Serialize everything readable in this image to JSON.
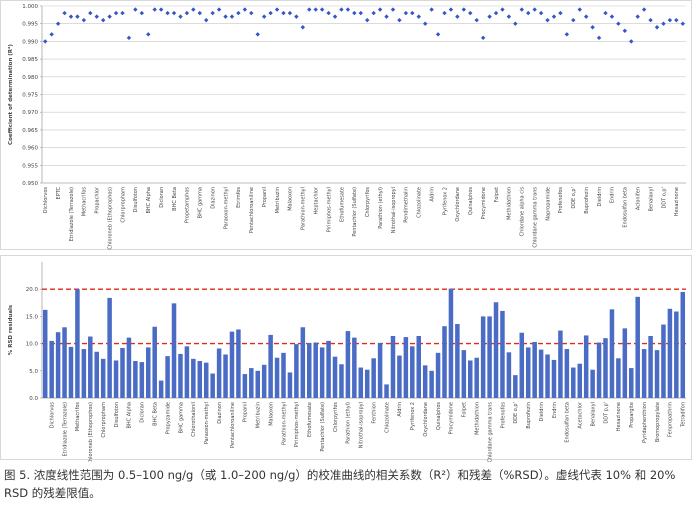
{
  "chart_data": [
    {
      "type": "scatter",
      "y_label": "Coefficient of determination (R²)",
      "color": "#3556c8",
      "marker": "diamond",
      "grid": true,
      "ylim": [
        0.95,
        1.0
      ],
      "yticks": [
        {
          "value": 0.95,
          "label": "0.950"
        },
        0.955,
        {
          "value": 0.96,
          "label": "0.960"
        },
        0.965,
        {
          "value": 0.97,
          "label": "0.970"
        },
        0.975,
        {
          "value": 0.98,
          "label": "0.980"
        },
        0.985,
        {
          "value": 0.99,
          "label": "0.990"
        },
        0.995,
        {
          "value": 1.0,
          "label": "1.000"
        }
      ],
      "categories": [
        "Dichlorvos",
        null,
        "EPTC",
        null,
        "Etridiazole (Terrazole)",
        null,
        "Methacrifos",
        null,
        "Propachlor",
        null,
        "Chloroneb (Ethoprophos)",
        null,
        "Chlorpropham",
        null,
        "Disulfoton",
        null,
        "BHC Alpha",
        null,
        "Dicloran",
        null,
        "BHC Beta",
        null,
        "Propetamphos",
        null,
        "BHC gamma",
        null,
        "Diazinon",
        null,
        "Paraoxon-methyl",
        null,
        "Etrimfos",
        null,
        "Pentachloroaniline",
        null,
        "Propanil",
        null,
        "Metribuzin",
        null,
        "Malaoxon",
        null,
        "Parathion-methyl",
        null,
        "Heptachlor",
        null,
        "Pirimiphos-methyl",
        null,
        "Ethofumesate",
        null,
        "Pentachlor (Sulfate)",
        null,
        "Chlorpyrifos",
        null,
        "Parathion (ethyl)",
        null,
        "Nitrothal-isopropyl",
        null,
        "Pendimethalin",
        null,
        "Chlozolinate",
        null,
        "Aldrin",
        null,
        "Pyrifenox 2",
        null,
        "Oxychlordane",
        null,
        "Quinalphos",
        null,
        "Procymidone",
        null,
        "Folpet",
        null,
        "Methidathion",
        null,
        "Chlordane alpha cis",
        null,
        "Chlordane gamma trans",
        null,
        "Napropamide",
        null,
        "Profenofos",
        null,
        "DDE o,p'",
        null,
        "Buprofezin",
        null,
        "Dieldrin",
        null,
        "Endrin",
        null,
        "Endosulfan beta",
        null,
        "Aclonifen",
        null,
        "Benalaxyl",
        null,
        "DDT o,p'",
        null,
        "Hexazinone",
        null
      ],
      "values": [
        0.99,
        0.992,
        0.995,
        0.998,
        0.997,
        0.997,
        0.996,
        0.998,
        0.997,
        0.996,
        0.997,
        0.998,
        0.998,
        0.991,
        0.999,
        0.998,
        0.992,
        0.999,
        0.999,
        0.998,
        0.998,
        0.997,
        0.998,
        0.999,
        0.998,
        0.996,
        0.998,
        0.999,
        0.997,
        0.997,
        0.998,
        0.999,
        0.998,
        0.992,
        0.997,
        0.998,
        0.999,
        0.998,
        0.998,
        0.997,
        0.994,
        0.999,
        0.999,
        0.999,
        0.998,
        0.997,
        0.999,
        0.999,
        0.998,
        0.998,
        0.996,
        0.998,
        0.999,
        0.997,
        0.999,
        0.996,
        0.998,
        0.998,
        0.997,
        0.995,
        0.999,
        0.992,
        0.998,
        0.999,
        0.997,
        0.999,
        0.998,
        0.996,
        0.991,
        0.997,
        0.998,
        0.999,
        0.997,
        0.995,
        0.999,
        0.998,
        0.999,
        0.998,
        0.996,
        0.997,
        0.998,
        0.992,
        0.996,
        0.999,
        0.997,
        0.994,
        0.991,
        0.998,
        0.997,
        0.995,
        0.993,
        0.99,
        0.997,
        0.999,
        0.996,
        0.994,
        0.995,
        0.996,
        0.996,
        0.995
      ]
    },
    {
      "type": "bar",
      "y_label": "% RSD residuals",
      "color": "#4a6cc4",
      "grid": false,
      "ylim": [
        0,
        25
      ],
      "yticks": [
        {
          "value": 0,
          "label": "0.0"
        },
        {
          "value": 5,
          "label": "5.0"
        },
        {
          "value": 10,
          "label": "10.0"
        },
        {
          "value": 15,
          "label": "15.0"
        },
        {
          "value": 20,
          "label": "20.0"
        }
      ],
      "limit_lines": [
        10,
        20
      ],
      "limit_color": "#e02a1a",
      "categories": [
        null,
        "Dichlorvos",
        null,
        "Etridiazole (Terrazole)",
        null,
        "Methacrifos",
        null,
        "Chloroneb (Ethoprophos)",
        null,
        "Chlorpropham",
        null,
        "Disulfoton",
        null,
        "BHC Alpha",
        null,
        "Dicloran",
        null,
        "BHC Beta",
        null,
        "Propyzamide",
        null,
        "BHC gamma",
        null,
        "Chlorothalonil",
        null,
        "Paraoxon-methyl",
        null,
        "Diazinon",
        null,
        "Pentachloroaniline",
        null,
        "Propanil",
        null,
        "Metribuzin",
        null,
        "Malaoxon",
        null,
        "Parathion-methyl",
        null,
        "Pirimiphos-methyl",
        null,
        "Ethofumesate",
        null,
        "Pentachlor (Sulfate)",
        null,
        "Chlorpyrifos",
        null,
        "Parathion (ethyl)",
        null,
        "Nitrothal-isopropyl",
        null,
        "Fenthion",
        null,
        "Chlozolinate",
        null,
        "Aldrin",
        null,
        "Pyrifenox 2",
        null,
        "Oxychlordane",
        null,
        "Quinalphos",
        null,
        "Procymidone",
        null,
        "Folpet",
        null,
        "Methidathion",
        null,
        "Chlordane gamma trans",
        null,
        "Profenofos",
        null,
        "DDE o,p'",
        null,
        "Buprofezin",
        null,
        "Dieldrin",
        null,
        "Endrin",
        null,
        "Endosulfan beta",
        null,
        "Acetochlor",
        null,
        "Benalaxyl",
        null,
        "DDT p,p'",
        null,
        "Hexazinone",
        null,
        "Propargite",
        null,
        "Pyridaphenthion",
        null,
        "Bromopropylate",
        null,
        "Fenpropathrin",
        null,
        "Tetradifon"
      ],
      "values": [
        16.2,
        10.5,
        12.1,
        13.0,
        9.4,
        20.0,
        9.0,
        11.3,
        8.5,
        7.2,
        18.4,
        6.9,
        9.2,
        11.1,
        6.8,
        6.6,
        9.3,
        13.1,
        3.2,
        7.7,
        17.4,
        8.1,
        9.5,
        7.2,
        6.8,
        6.5,
        4.5,
        9.1,
        8.0,
        12.2,
        12.6,
        4.4,
        5.5,
        5.0,
        6.1,
        11.6,
        7.4,
        8.3,
        4.7,
        9.9,
        13.0,
        10.1,
        10.2,
        9.3,
        10.5,
        7.6,
        6.2,
        12.3,
        11.1,
        5.6,
        5.2,
        7.3,
        10.1,
        2.5,
        11.4,
        7.8,
        11.2,
        9.5,
        11.4,
        6.0,
        5.0,
        8.3,
        13.2,
        20.1,
        13.6,
        8.8,
        6.9,
        7.4,
        15.0,
        15.0,
        17.6,
        16.0,
        8.4,
        4.2,
        12.0,
        9.3,
        10.3,
        8.9,
        8.0,
        7.0,
        12.4,
        9.0,
        5.6,
        6.3,
        11.5,
        5.2,
        10.2,
        11.0,
        16.3,
        7.3,
        12.8,
        5.5,
        18.6,
        9.0,
        11.4,
        8.8,
        13.5,
        16.4,
        15.9,
        19.5
      ]
    }
  ],
  "caption": "图 5. 浓度线性范围为 0.5–100 ng/g（或 1.0–200 ng/g）的校准曲线的相关系数（R²）和残差（%RSD）。虚线代表 10% 和 20% RSD 的残差限值。"
}
